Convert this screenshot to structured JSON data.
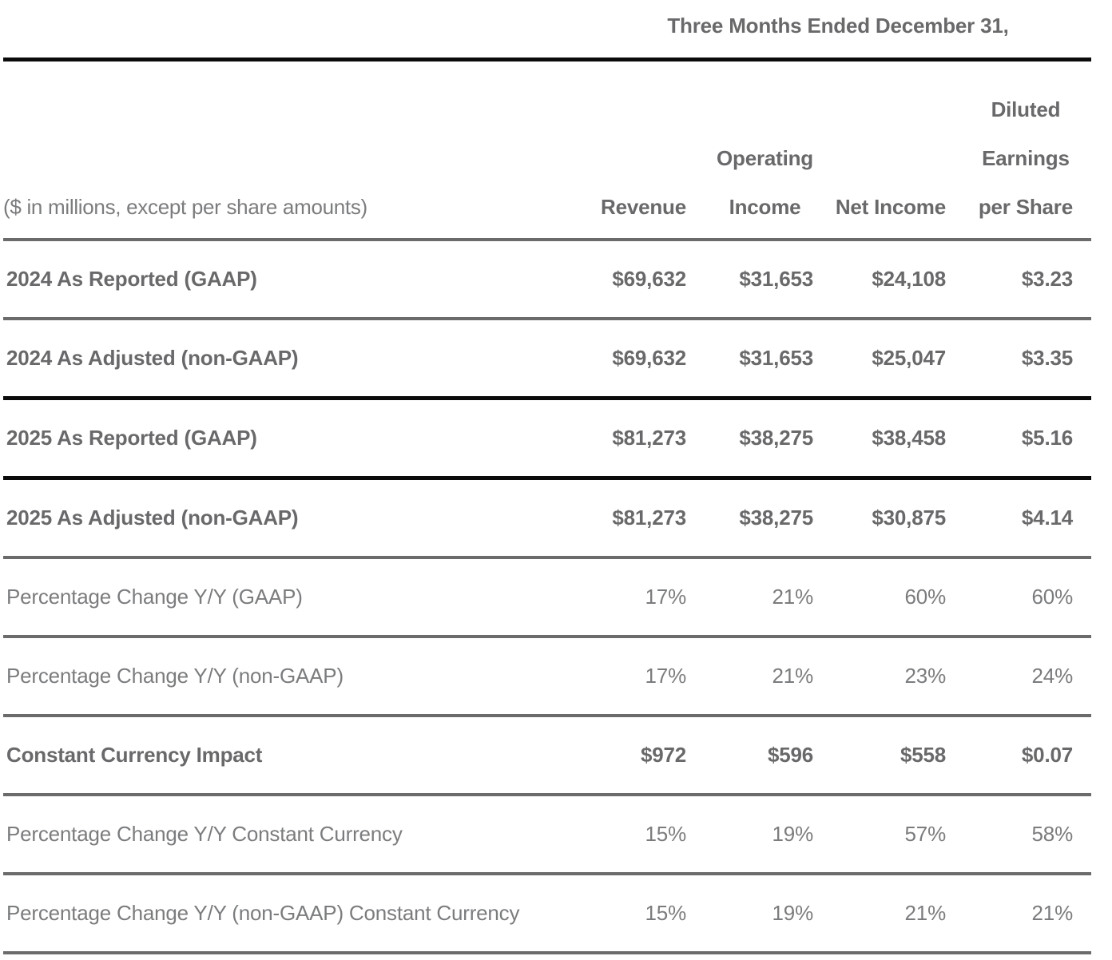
{
  "table": {
    "title": "Three Months Ended December 31,",
    "label_note": "($ in millions, except per share amounts)",
    "columns": [
      {
        "name": "Revenue",
        "lines": [
          "Revenue"
        ]
      },
      {
        "name": "Operating Income",
        "lines": [
          "Operating",
          "Income"
        ]
      },
      {
        "name": "Net Income",
        "lines": [
          "Net Income"
        ]
      },
      {
        "name": "Diluted Earnings per Share",
        "lines": [
          "Diluted",
          "Earnings",
          "per Share"
        ]
      }
    ],
    "rows": [
      {
        "label": "2024 As Reported (GAAP)",
        "emphasis": "bold",
        "values": [
          "$69,632",
          "$31,653",
          "$24,108",
          "$3.23"
        ]
      },
      {
        "label": "2024 As Adjusted (non-GAAP)",
        "emphasis": "bold",
        "values": [
          "$69,632",
          "$31,653",
          "$25,047",
          "$3.35"
        ]
      },
      {
        "label": "2025 As Reported (GAAP)",
        "emphasis": "bold",
        "values": [
          "$81,273",
          "$38,275",
          "$38,458",
          "$5.16"
        ]
      },
      {
        "label": "2025 As Adjusted (non-GAAP)",
        "emphasis": "bold",
        "values": [
          "$81,273",
          "$38,275",
          "$30,875",
          "$4.14"
        ]
      },
      {
        "label": "Percentage Change Y/Y (GAAP)",
        "emphasis": "regular",
        "values": [
          "17%",
          "21%",
          "60%",
          "60%"
        ]
      },
      {
        "label": "Percentage Change Y/Y (non-GAAP)",
        "emphasis": "regular",
        "values": [
          "17%",
          "21%",
          "23%",
          "24%"
        ]
      },
      {
        "label": "Constant Currency Impact",
        "emphasis": "bold",
        "values": [
          "$972",
          "$596",
          "$558",
          "$0.07"
        ]
      },
      {
        "label": "Percentage Change Y/Y Constant Currency",
        "emphasis": "regular",
        "values": [
          "15%",
          "19%",
          "57%",
          "58%"
        ]
      },
      {
        "label": "Percentage Change Y/Y (non-GAAP) Constant Currency",
        "emphasis": "regular",
        "values": [
          "15%",
          "19%",
          "21%",
          "21%"
        ]
      }
    ],
    "colors": {
      "text_bold": "#69696b",
      "text_regular": "#7b7c7e",
      "rule_gray": "#6b6b6b",
      "rule_black": "#0b0b0b",
      "background": "#ffffff"
    }
  }
}
